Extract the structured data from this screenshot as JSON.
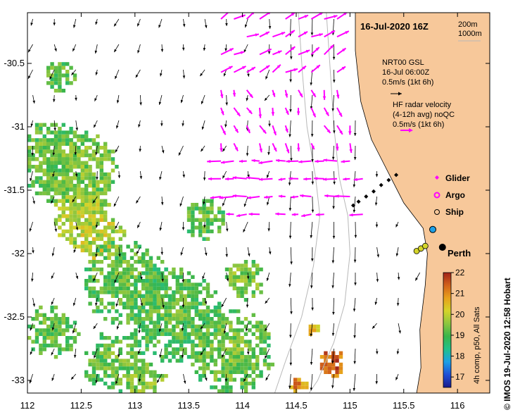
{
  "title": "16-Jul-2020 16Z",
  "side_credit": "©  IMOS 19-Jul-2020 12:58 Hobart",
  "colors": {
    "land": "#F7C89A",
    "ocean": "#FFFFFF",
    "hf_radar": "#FF00FF",
    "glider": "#FF00FF",
    "argo": "#FF00FF",
    "ship_ring": "#000000",
    "bathymetry": "#B8B8B8",
    "arrows": "#000000",
    "frame": "#000000"
  },
  "legend": {
    "isobath_200": "200m",
    "isobath_1000": "1000m",
    "nrt_title": "NRT00 GSL",
    "nrt_time": "16-Jul 06:00Z",
    "nrt_scale": "0.5m/s (1kt 6h)",
    "hf_title": "HF radar velocity",
    "hf_subtitle": "(4-12h avg) noQC",
    "hf_scale": "0.5m/s (1kt 6h)",
    "glider_label": "Glider",
    "argo_label": "Argo",
    "ship_label": "Ship"
  },
  "places": {
    "perth_label": "Perth"
  },
  "colorbar": {
    "label": "4h comp, p50, All Sats",
    "min": 16.5,
    "max": 22,
    "ticks": [
      "17",
      "18",
      "19",
      "20",
      "21",
      "22"
    ],
    "stops": [
      "#1a1a8c",
      "#1f4fd6",
      "#1ea0e6",
      "#22c08a",
      "#39b54a",
      "#8dc63f",
      "#d4d42a",
      "#e8a11b",
      "#d2621a",
      "#a0231a"
    ]
  },
  "chart_data": {
    "type": "map",
    "region": "Western Australia, off Perth",
    "xlim": [
      112,
      116.3
    ],
    "ylim": [
      -33.1,
      -30.1
    ],
    "x_ticks": [
      "112",
      "112.5",
      "113",
      "113.5",
      "114",
      "114.5",
      "115",
      "115.5",
      "116"
    ],
    "y_ticks": [
      "-30.5",
      "-31",
      "-31.5",
      "-32",
      "-32.5",
      "-33"
    ],
    "perth": {
      "lon": 115.86,
      "lat": -31.95
    },
    "sst_patches": [
      {
        "lon": 112.2,
        "lat": -31.25,
        "r": 0.35,
        "temp": 19.0
      },
      {
        "lon": 112.45,
        "lat": -31.35,
        "r": 0.4,
        "temp": 19.2
      },
      {
        "lon": 112.65,
        "lat": -31.85,
        "r": 0.25,
        "temp": 19.9
      },
      {
        "lon": 112.5,
        "lat": -31.7,
        "r": 0.3,
        "temp": 19.6
      },
      {
        "lon": 112.9,
        "lat": -32.2,
        "r": 0.4,
        "temp": 19.0
      },
      {
        "lon": 113.35,
        "lat": -32.45,
        "r": 0.45,
        "temp": 18.9
      },
      {
        "lon": 113.9,
        "lat": -32.75,
        "r": 0.4,
        "temp": 19.1
      },
      {
        "lon": 112.8,
        "lat": -32.85,
        "r": 0.3,
        "temp": 19.0
      },
      {
        "lon": 113.1,
        "lat": -33.0,
        "r": 0.2,
        "temp": 19.3
      },
      {
        "lon": 112.2,
        "lat": -32.6,
        "r": 0.25,
        "temp": 19.0
      },
      {
        "lon": 113.6,
        "lat": -31.7,
        "r": 0.2,
        "temp": 19.0
      },
      {
        "lon": 114.0,
        "lat": -32.2,
        "r": 0.2,
        "temp": 19.2
      },
      {
        "lon": 112.3,
        "lat": -30.6,
        "r": 0.15,
        "temp": 19.0
      },
      {
        "lon": 114.8,
        "lat": -32.85,
        "r": 0.13,
        "temp": 21.2
      },
      {
        "lon": 114.65,
        "lat": -32.6,
        "r": 0.08,
        "temp": 20.2
      },
      {
        "lon": 114.5,
        "lat": -33.03,
        "r": 0.1,
        "temp": 20.8
      }
    ],
    "geostrophic": {
      "lon_range": [
        112.05,
        115.75
      ],
      "lat_range": [
        -33.0,
        -30.15
      ],
      "step_lon": 0.2,
      "step_lat": 0.2,
      "u_bias": -0.05,
      "v_bias": -0.28
    },
    "hf_radar": {
      "lon_range": [
        113.8,
        115.2
      ],
      "lat_range": [
        -31.75,
        -30.15
      ],
      "step_lon": 0.12,
      "step_lat": 0.14
    },
    "glider_track": [
      {
        "lon": 115.43,
        "lat": -31.38
      },
      {
        "lon": 115.36,
        "lat": -31.42
      },
      {
        "lon": 115.29,
        "lat": -31.46
      },
      {
        "lon": 115.22,
        "lat": -31.51
      },
      {
        "lon": 115.15,
        "lat": -31.55
      },
      {
        "lon": 115.08,
        "lat": -31.59
      },
      {
        "lon": 115.03,
        "lat": -31.62
      }
    ],
    "argo_floats": [
      {
        "lon": 115.62,
        "lat": -31.98
      },
      {
        "lon": 115.66,
        "lat": -31.96
      },
      {
        "lon": 115.7,
        "lat": -31.94
      }
    ],
    "ship_positions": [
      {
        "lon": 115.77,
        "lat": -31.81,
        "fill": "#1ea0e6"
      },
      {
        "lon": 115.86,
        "lat": -31.95,
        "fill": "#000000"
      }
    ],
    "coast": [
      [
        115.05,
        -30.1
      ],
      [
        115.05,
        -30.4
      ],
      [
        115.1,
        -30.8
      ],
      [
        115.2,
        -31.1
      ],
      [
        115.35,
        -31.35
      ],
      [
        115.5,
        -31.6
      ],
      [
        115.68,
        -31.8
      ],
      [
        115.72,
        -32.0
      ],
      [
        115.7,
        -32.25
      ],
      [
        115.65,
        -32.6
      ],
      [
        115.66,
        -32.9
      ],
      [
        115.62,
        -33.1
      ]
    ],
    "isobath_200": [
      [
        114.78,
        -30.1
      ],
      [
        114.82,
        -30.6
      ],
      [
        114.85,
        -31.0
      ],
      [
        114.9,
        -31.4
      ],
      [
        114.98,
        -31.7
      ],
      [
        115.0,
        -32.0
      ],
      [
        114.95,
        -32.4
      ],
      [
        114.85,
        -32.7
      ],
      [
        114.7,
        -33.0
      ],
      [
        114.62,
        -33.1
      ]
    ],
    "isobath_1000": [
      [
        114.52,
        -30.1
      ],
      [
        114.56,
        -30.6
      ],
      [
        114.6,
        -31.0
      ],
      [
        114.68,
        -31.4
      ],
      [
        114.72,
        -31.7
      ],
      [
        114.66,
        -32.1
      ],
      [
        114.55,
        -32.5
      ],
      [
        114.4,
        -32.85
      ],
      [
        114.3,
        -33.1
      ]
    ]
  }
}
